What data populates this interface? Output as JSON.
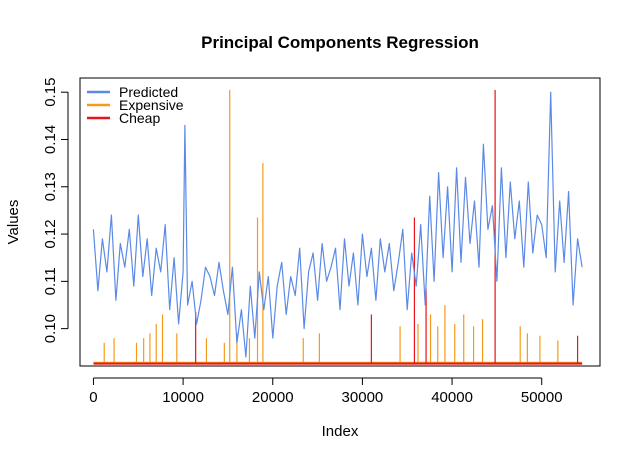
{
  "chart_data": {
    "type": "line",
    "title": "Principal Components Regression",
    "xlabel": "Index",
    "ylabel": "Values",
    "xlim": [
      -1500,
      56500
    ],
    "ylim": [
      0.0921,
      0.153
    ],
    "x_ticks": [
      0,
      10000,
      20000,
      30000,
      40000,
      50000
    ],
    "x_tick_labels": [
      "0",
      "10000",
      "20000",
      "30000",
      "40000",
      "50000"
    ],
    "y_ticks": [
      0.1,
      0.11,
      0.12,
      0.13,
      0.14,
      0.15
    ],
    "y_tick_labels": [
      "0.10",
      "0.11",
      "0.12",
      "0.13",
      "0.14",
      "0.15"
    ],
    "legend_position": "top-left",
    "grid": false,
    "series": [
      {
        "name": "Predicted",
        "color": "#5b8ae6",
        "x": [
          0,
          500,
          1000,
          1500,
          2000,
          2500,
          3000,
          3500,
          4000,
          4500,
          5000,
          5500,
          6000,
          6500,
          7000,
          7500,
          8000,
          8500,
          9000,
          9500,
          10000,
          10200,
          10500,
          11000,
          11500,
          12000,
          12500,
          13000,
          13500,
          14000,
          14500,
          15000,
          15500,
          16000,
          16500,
          17000,
          17500,
          18000,
          18500,
          19000,
          19500,
          20000,
          20500,
          21000,
          21500,
          22000,
          22500,
          23000,
          23500,
          24000,
          24500,
          25000,
          25500,
          26000,
          26500,
          27000,
          27500,
          28000,
          28500,
          29000,
          29500,
          30000,
          30500,
          31000,
          31500,
          32000,
          32500,
          33000,
          33500,
          34000,
          34500,
          35000,
          35500,
          36000,
          36500,
          37000,
          37500,
          38000,
          38500,
          39000,
          39500,
          40000,
          40500,
          41000,
          41500,
          42000,
          42500,
          43000,
          43500,
          44000,
          44500,
          45000,
          45500,
          46000,
          46500,
          47000,
          47500,
          48000,
          48500,
          49000,
          49500,
          50000,
          50500,
          51000,
          51500,
          52000,
          52500,
          53000,
          53500,
          54000,
          54500
        ],
        "values": [
          0.121,
          0.108,
          0.119,
          0.112,
          0.124,
          0.106,
          0.118,
          0.113,
          0.121,
          0.109,
          0.124,
          0.111,
          0.119,
          0.107,
          0.117,
          0.112,
          0.122,
          0.104,
          0.115,
          0.101,
          0.112,
          0.143,
          0.105,
          0.11,
          0.101,
          0.106,
          0.113,
          0.111,
          0.107,
          0.114,
          0.108,
          0.103,
          0.113,
          0.097,
          0.104,
          0.094,
          0.109,
          0.098,
          0.112,
          0.104,
          0.111,
          0.098,
          0.109,
          0.114,
          0.103,
          0.111,
          0.107,
          0.117,
          0.1,
          0.112,
          0.116,
          0.106,
          0.118,
          0.11,
          0.113,
          0.117,
          0.104,
          0.119,
          0.109,
          0.116,
          0.105,
          0.12,
          0.111,
          0.117,
          0.106,
          0.119,
          0.112,
          0.118,
          0.108,
          0.114,
          0.121,
          0.104,
          0.116,
          0.109,
          0.122,
          0.105,
          0.128,
          0.11,
          0.133,
          0.115,
          0.13,
          0.112,
          0.134,
          0.114,
          0.132,
          0.118,
          0.127,
          0.113,
          0.139,
          0.121,
          0.126,
          0.11,
          0.134,
          0.115,
          0.131,
          0.119,
          0.127,
          0.113,
          0.131,
          0.116,
          0.124,
          0.122,
          0.115,
          0.15,
          0.112,
          0.127,
          0.114,
          0.129,
          0.105,
          0.119,
          0.113
        ]
      },
      {
        "name": "Expensive",
        "color": "#f59a1a",
        "baseline": 0.0928,
        "spikes": [
          {
            "x": 1200,
            "y": 0.097
          },
          {
            "x": 2300,
            "y": 0.098
          },
          {
            "x": 4800,
            "y": 0.097
          },
          {
            "x": 5600,
            "y": 0.098
          },
          {
            "x": 6300,
            "y": 0.099
          },
          {
            "x": 7000,
            "y": 0.101
          },
          {
            "x": 7700,
            "y": 0.103
          },
          {
            "x": 9300,
            "y": 0.099
          },
          {
            "x": 12600,
            "y": 0.098
          },
          {
            "x": 14600,
            "y": 0.097
          },
          {
            "x": 15200,
            "y": 0.1505
          },
          {
            "x": 16000,
            "y": 0.099
          },
          {
            "x": 17400,
            "y": 0.098
          },
          {
            "x": 18300,
            "y": 0.1235
          },
          {
            "x": 18900,
            "y": 0.135
          },
          {
            "x": 23400,
            "y": 0.098
          },
          {
            "x": 25200,
            "y": 0.099
          },
          {
            "x": 34200,
            "y": 0.1005
          },
          {
            "x": 36200,
            "y": 0.101
          },
          {
            "x": 37600,
            "y": 0.103
          },
          {
            "x": 38400,
            "y": 0.1005
          },
          {
            "x": 39200,
            "y": 0.105
          },
          {
            "x": 40300,
            "y": 0.101
          },
          {
            "x": 41300,
            "y": 0.103
          },
          {
            "x": 42400,
            "y": 0.1005
          },
          {
            "x": 43400,
            "y": 0.102
          },
          {
            "x": 47600,
            "y": 0.1005
          },
          {
            "x": 48400,
            "y": 0.099
          },
          {
            "x": 49800,
            "y": 0.0985
          },
          {
            "x": 51800,
            "y": 0.0975
          }
        ]
      },
      {
        "name": "Cheap",
        "color": "#e8131b",
        "baseline": 0.0926,
        "spikes": [
          {
            "x": 11400,
            "y": 0.1035
          },
          {
            "x": 31000,
            "y": 0.103
          },
          {
            "x": 35800,
            "y": 0.1235
          },
          {
            "x": 37100,
            "y": 0.1085
          },
          {
            "x": 44800,
            "y": 0.1505
          },
          {
            "x": 54000,
            "y": 0.0985
          }
        ]
      }
    ]
  }
}
